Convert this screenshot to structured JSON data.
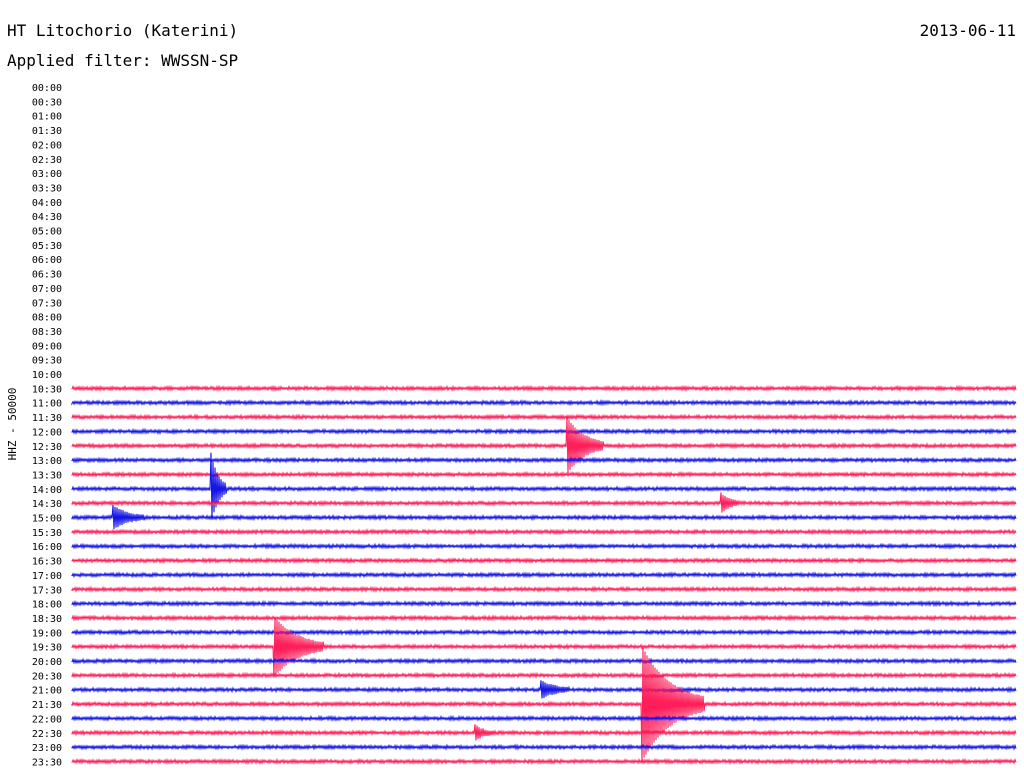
{
  "header": {
    "station": "HT Litochorio (Katerini)",
    "date": "2013-06-11",
    "filter": "Applied filter: WWSSN-SP"
  },
  "chart_data": {
    "type": "helicorder",
    "ylabel": "HHZ - 50000",
    "rows": [
      "00:00",
      "00:30",
      "01:00",
      "01:30",
      "02:00",
      "02:30",
      "03:00",
      "03:30",
      "04:00",
      "04:30",
      "05:00",
      "05:30",
      "06:00",
      "06:30",
      "07:00",
      "07:30",
      "08:00",
      "08:30",
      "09:00",
      "09:30",
      "10:00",
      "10:30",
      "11:00",
      "11:30",
      "12:00",
      "12:30",
      "13:00",
      "13:30",
      "14:00",
      "14:30",
      "15:00",
      "15:30",
      "16:00",
      "16:30",
      "17:00",
      "17:30",
      "18:00",
      "18:30",
      "19:00",
      "19:30",
      "20:00",
      "20:30",
      "21:00",
      "21:30",
      "22:00",
      "22:30",
      "23:00",
      "23:30"
    ],
    "first_trace_row": "10:30",
    "colors": {
      "a": "#ff1e5a",
      "b": "#1414e6"
    },
    "events": [
      {
        "row": "12:30",
        "minute": 15.7,
        "amplitude": 2.0,
        "duration": 1.2
      },
      {
        "row": "19:30",
        "minute": 6.4,
        "amplitude": 2.1,
        "duration": 1.6
      },
      {
        "row": "21:30",
        "minute": 18.1,
        "amplitude": 4.0,
        "duration": 2.0
      },
      {
        "row": "21:00",
        "minute": 14.9,
        "amplitude": 0.6,
        "duration": 0.9
      },
      {
        "row": "14:00",
        "minute": 4.4,
        "amplitude": 2.6,
        "duration": 0.5
      },
      {
        "row": "15:00",
        "minute": 1.3,
        "amplitude": 0.8,
        "duration": 1.0
      },
      {
        "row": "14:30",
        "minute": 20.6,
        "amplitude": 0.7,
        "duration": 0.6
      },
      {
        "row": "22:30",
        "minute": 12.8,
        "amplitude": 0.5,
        "duration": 0.6
      }
    ]
  }
}
